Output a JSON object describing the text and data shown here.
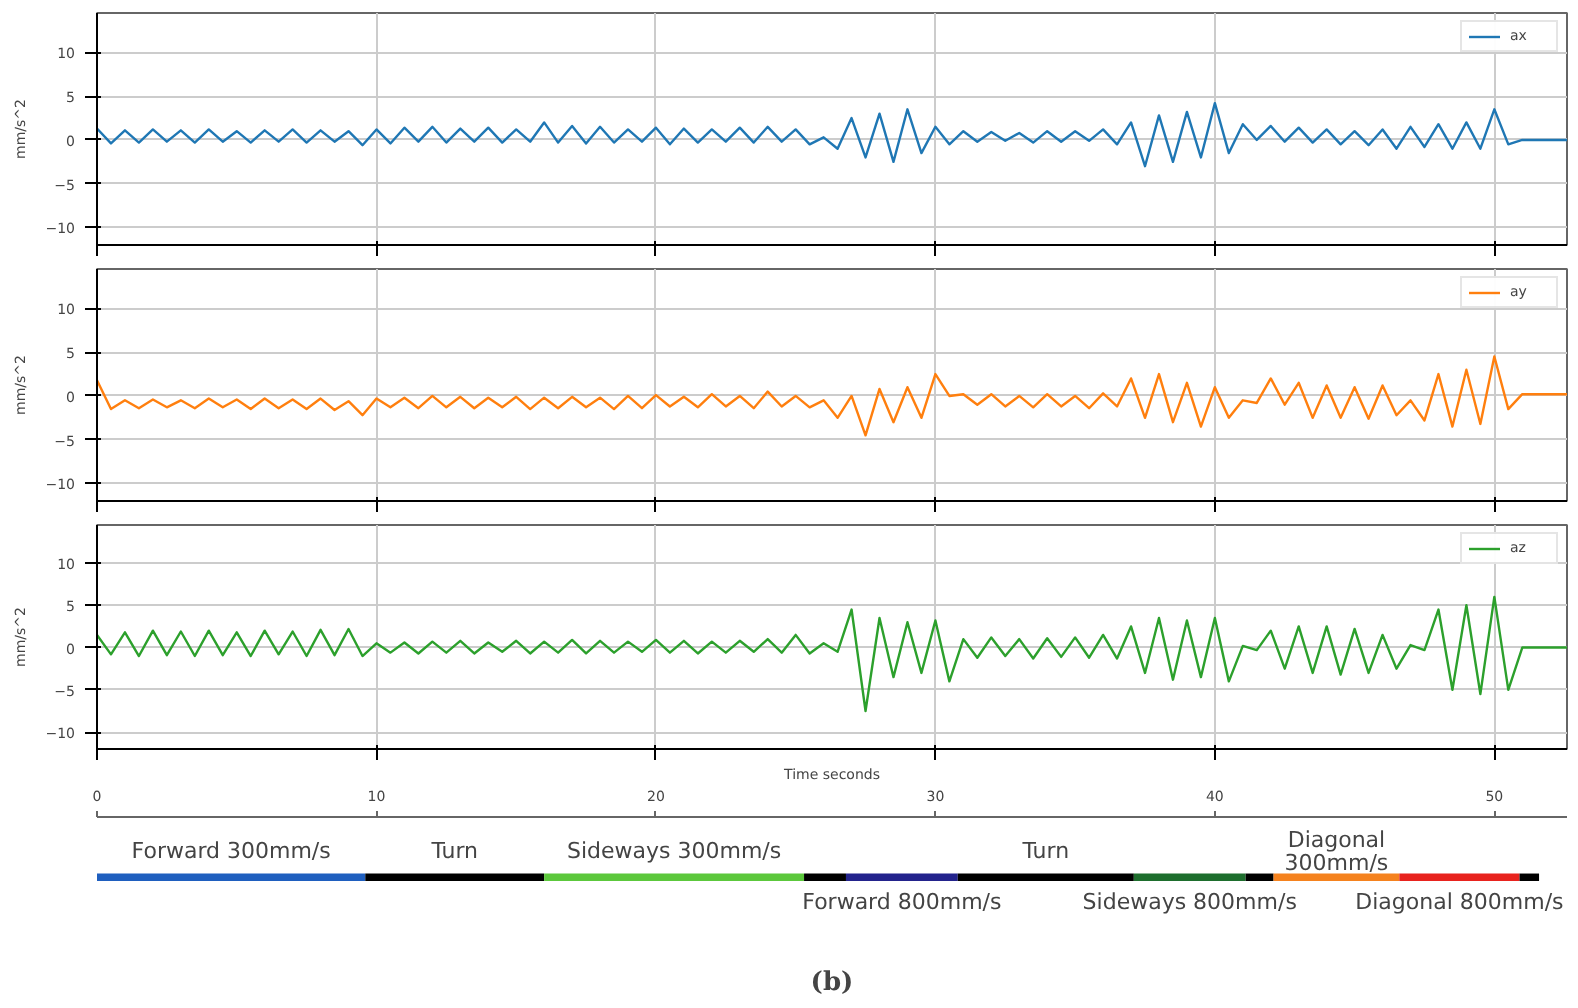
{
  "chart_data": [
    {
      "type": "line",
      "ylabel": "mm/s^2",
      "xlim": [
        0,
        52.6
      ],
      "ylim": [
        -12,
        14.5
      ],
      "xticks": [
        0,
        10,
        20,
        30,
        40,
        50
      ],
      "yticks": [
        -10,
        -5,
        0,
        5,
        10
      ],
      "grid": true,
      "legend": "top right",
      "tick_labels": "y",
      "x": [
        0,
        0.5,
        1,
        1.5,
        2,
        2.5,
        3,
        3.5,
        4,
        4.5,
        5,
        5.5,
        6,
        6.5,
        7,
        7.5,
        8,
        8.5,
        9,
        9.5,
        10,
        10.5,
        11,
        11.5,
        12,
        12.5,
        13,
        13.5,
        14,
        14.5,
        15,
        15.5,
        16,
        16.5,
        17,
        17.5,
        18,
        18.5,
        19,
        19.5,
        20,
        20.5,
        21,
        21.5,
        22,
        22.5,
        23,
        23.5,
        24,
        24.5,
        25,
        25.5,
        26,
        26.5,
        27,
        27.5,
        28,
        28.5,
        29,
        29.5,
        30,
        30.5,
        31,
        31.5,
        32,
        32.5,
        33,
        33.5,
        34,
        34.5,
        35,
        35.5,
        36,
        36.5,
        37,
        37.5,
        38,
        38.5,
        39,
        39.5,
        40,
        40.5,
        41,
        41.5,
        42,
        42.5,
        43,
        43.5,
        44,
        44.5,
        45,
        45.5,
        46,
        46.5,
        47,
        47.5,
        48,
        48.5,
        49,
        49.5,
        50,
        50.5,
        51,
        51.5,
        52.6
      ],
      "series": [
        {
          "name": "ax",
          "color": "#1f77b4",
          "values": [
            1.3,
            -0.4,
            1.1,
            -0.3,
            1.2,
            -0.2,
            1.1,
            -0.3,
            1.2,
            -0.2,
            1.0,
            -0.3,
            1.1,
            -0.2,
            1.2,
            -0.3,
            1.1,
            -0.2,
            1.0,
            -0.6,
            1.2,
            -0.4,
            1.4,
            -0.2,
            1.5,
            -0.3,
            1.3,
            -0.2,
            1.4,
            -0.3,
            1.2,
            -0.2,
            2.0,
            -0.3,
            1.6,
            -0.4,
            1.5,
            -0.3,
            1.2,
            -0.2,
            1.4,
            -0.5,
            1.3,
            -0.3,
            1.2,
            -0.2,
            1.4,
            -0.3,
            1.5,
            -0.2,
            1.2,
            -0.5,
            0.3,
            -1.0,
            2.5,
            -2.0,
            3.0,
            -2.5,
            3.5,
            -1.5,
            1.5,
            -0.5,
            1.0,
            -0.2,
            0.9,
            -0.1,
            0.8,
            -0.3,
            1.0,
            -0.2,
            1.0,
            -0.1,
            1.2,
            -0.5,
            2.0,
            -3.0,
            2.8,
            -2.5,
            3.2,
            -2.0,
            4.2,
            -1.5,
            1.8,
            0.0,
            1.6,
            -0.2,
            1.4,
            -0.3,
            1.2,
            -0.5,
            1.0,
            -0.6,
            1.2,
            -1.0,
            1.5,
            -0.8,
            1.8,
            -1.0,
            2.0,
            -1.0,
            3.5,
            -0.5,
            0.0,
            0.0,
            0.0
          ]
        }
      ]
    },
    {
      "type": "line",
      "ylabel": "mm/s^2",
      "xlim": [
        0,
        52.6
      ],
      "ylim": [
        -12,
        14.5
      ],
      "xticks": [
        0,
        10,
        20,
        30,
        40,
        50
      ],
      "yticks": [
        -10,
        -5,
        0,
        5,
        10
      ],
      "grid": true,
      "legend": "top right",
      "tick_labels": "y",
      "x": [
        0,
        0.5,
        1,
        1.5,
        2,
        2.5,
        3,
        3.5,
        4,
        4.5,
        5,
        5.5,
        6,
        6.5,
        7,
        7.5,
        8,
        8.5,
        9,
        9.5,
        10,
        10.5,
        11,
        11.5,
        12,
        12.5,
        13,
        13.5,
        14,
        14.5,
        15,
        15.5,
        16,
        16.5,
        17,
        17.5,
        18,
        18.5,
        19,
        19.5,
        20,
        20.5,
        21,
        21.5,
        22,
        22.5,
        23,
        23.5,
        24,
        24.5,
        25,
        25.5,
        26,
        26.5,
        27,
        27.5,
        28,
        28.5,
        29,
        29.5,
        30,
        30.5,
        31,
        31.5,
        32,
        32.5,
        33,
        33.5,
        34,
        34.5,
        35,
        35.5,
        36,
        36.5,
        37,
        37.5,
        38,
        38.5,
        39,
        39.5,
        40,
        40.5,
        41,
        41.5,
        42,
        42.5,
        43,
        43.5,
        44,
        44.5,
        45,
        45.5,
        46,
        46.5,
        47,
        47.5,
        48,
        48.5,
        49,
        49.5,
        50,
        50.5,
        51,
        51.5,
        52.6
      ],
      "series": [
        {
          "name": "ay",
          "color": "#ff7f0e",
          "values": [
            1.8,
            -1.5,
            -0.5,
            -1.4,
            -0.4,
            -1.3,
            -0.5,
            -1.4,
            -0.3,
            -1.3,
            -0.4,
            -1.5,
            -0.3,
            -1.4,
            -0.4,
            -1.5,
            -0.3,
            -1.6,
            -0.6,
            -2.2,
            -0.3,
            -1.3,
            -0.2,
            -1.4,
            0.0,
            -1.3,
            -0.1,
            -1.4,
            -0.2,
            -1.3,
            -0.1,
            -1.5,
            -0.2,
            -1.4,
            -0.1,
            -1.3,
            -0.2,
            -1.5,
            0.0,
            -1.4,
            0.1,
            -1.2,
            -0.1,
            -1.3,
            0.2,
            -1.2,
            0.0,
            -1.4,
            0.5,
            -1.2,
            0.0,
            -1.3,
            -0.5,
            -2.5,
            0.0,
            -4.5,
            0.8,
            -3.0,
            1.0,
            -2.5,
            2.5,
            0.0,
            0.2,
            -1.0,
            0.2,
            -1.2,
            0.0,
            -1.3,
            0.2,
            -1.2,
            0.0,
            -1.4,
            0.3,
            -1.2,
            2.0,
            -2.5,
            2.5,
            -3.0,
            1.5,
            -3.5,
            1.0,
            -2.5,
            -0.5,
            -0.8,
            2.0,
            -1.0,
            1.5,
            -2.5,
            1.2,
            -2.5,
            1.0,
            -2.6,
            1.2,
            -2.2,
            -0.5,
            -2.8,
            2.5,
            -3.5,
            3.0,
            -3.2,
            4.5,
            -1.5,
            0.2,
            0.2,
            0.2
          ]
        }
      ]
    },
    {
      "type": "line",
      "ylabel": "mm/s^2",
      "xlim": [
        0,
        52.6
      ],
      "ylim": [
        -12,
        14.5
      ],
      "xticks": [
        0,
        10,
        20,
        30,
        40,
        50
      ],
      "yticks": [
        -10,
        -5,
        0,
        5,
        10
      ],
      "grid": true,
      "legend": "top right",
      "tick_labels": "y",
      "x": [
        0,
        0.5,
        1,
        1.5,
        2,
        2.5,
        3,
        3.5,
        4,
        4.5,
        5,
        5.5,
        6,
        6.5,
        7,
        7.5,
        8,
        8.5,
        9,
        9.5,
        10,
        10.5,
        11,
        11.5,
        12,
        12.5,
        13,
        13.5,
        14,
        14.5,
        15,
        15.5,
        16,
        16.5,
        17,
        17.5,
        18,
        18.5,
        19,
        19.5,
        20,
        20.5,
        21,
        21.5,
        22,
        22.5,
        23,
        23.5,
        24,
        24.5,
        25,
        25.5,
        26,
        26.5,
        27,
        27.5,
        28,
        28.5,
        29,
        29.5,
        30,
        30.5,
        31,
        31.5,
        32,
        32.5,
        33,
        33.5,
        34,
        34.5,
        35,
        35.5,
        36,
        36.5,
        37,
        37.5,
        38,
        38.5,
        39,
        39.5,
        40,
        40.5,
        41,
        41.5,
        42,
        42.5,
        43,
        43.5,
        44,
        44.5,
        45,
        45.5,
        46,
        46.5,
        47,
        47.5,
        48,
        48.5,
        49,
        49.5,
        50,
        50.5,
        51,
        51.5,
        52.6
      ],
      "series": [
        {
          "name": "az",
          "color": "#2ca02c",
          "values": [
            1.5,
            -0.8,
            1.8,
            -1.0,
            2.0,
            -0.9,
            1.9,
            -1.0,
            2.0,
            -0.9,
            1.8,
            -1.0,
            2.0,
            -0.8,
            1.9,
            -1.0,
            2.1,
            -0.9,
            2.2,
            -1.0,
            0.5,
            -0.6,
            0.6,
            -0.7,
            0.7,
            -0.6,
            0.8,
            -0.7,
            0.6,
            -0.5,
            0.8,
            -0.7,
            0.7,
            -0.6,
            0.9,
            -0.7,
            0.8,
            -0.6,
            0.7,
            -0.5,
            0.9,
            -0.6,
            0.8,
            -0.7,
            0.7,
            -0.6,
            0.8,
            -0.5,
            1.0,
            -0.6,
            1.5,
            -0.7,
            0.5,
            -0.5,
            4.5,
            -7.5,
            3.5,
            -3.5,
            3.0,
            -3.0,
            3.2,
            -4.0,
            1.0,
            -1.2,
            1.2,
            -1.0,
            1.0,
            -1.3,
            1.1,
            -1.1,
            1.2,
            -1.2,
            1.5,
            -1.3,
            2.5,
            -3.0,
            3.5,
            -3.8,
            3.2,
            -3.5,
            3.5,
            -4.0,
            0.2,
            -0.3,
            2.0,
            -2.5,
            2.5,
            -3.0,
            2.5,
            -3.2,
            2.2,
            -3.0,
            1.5,
            -2.5,
            0.3,
            -0.3,
            4.5,
            -5.0,
            5.0,
            -5.5,
            6.0,
            -5.0,
            0.0,
            0.0,
            0.0
          ]
        }
      ]
    },
    {
      "type": "bar",
      "orientation": "horizontal",
      "stacked": true,
      "xlabel": "Time seconds",
      "xlim": [
        0,
        52.6
      ],
      "xticks": [
        0,
        10,
        20,
        30,
        40,
        50
      ],
      "tick_labels": "x",
      "categories": [
        null
      ],
      "annotations": [
        "(b)"
      ],
      "series": [
        {
          "name": "Forward 300mm/s",
          "color": "#1f5fbf",
          "values": [
            9.6
          ]
        },
        {
          "name": "Turn",
          "color": "#000000",
          "values": [
            6.4
          ]
        },
        {
          "name": "Sideways 300mm/s",
          "color": "#5cc83c",
          "values": [
            9.3
          ]
        },
        {
          "color": "#000000",
          "values": [
            1.5
          ]
        },
        {
          "name": "Forward 800mm/s",
          "color": "#23238c",
          "values": [
            4.0
          ]
        },
        {
          "name": "Turn",
          "color": "#000000",
          "values": [
            6.3
          ]
        },
        {
          "name": "Sideways 800mm/s",
          "color": "#1e6e2d",
          "values": [
            4.0
          ]
        },
        {
          "color": "#000000",
          "values": [
            1.0
          ]
        },
        {
          "name": "Diagonal 300mm/s",
          "color": "#f5821e",
          "values": [
            4.5
          ]
        },
        {
          "name": "Diagonal 800mm/s",
          "color": "#e8231e",
          "values": [
            4.3
          ]
        },
        {
          "color": "#000000",
          "values": [
            0.7
          ]
        }
      ]
    }
  ]
}
